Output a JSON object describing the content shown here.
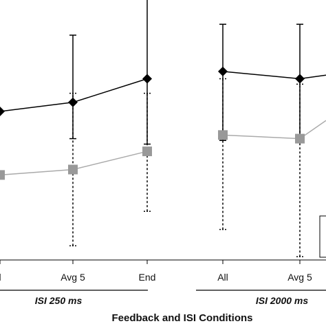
{
  "chart_data": {
    "type": "line",
    "xlabel": "Feedback and ISI Conditions",
    "categories": [
      "All",
      "Avg 5",
      "End",
      "All",
      "Avg 5"
    ],
    "category_labels_visible": [
      "l",
      "Avg 5",
      "End",
      "All",
      "Avg 5"
    ],
    "groups": [
      {
        "label": "ISI 250 ms",
        "categories": [
          0,
          1,
          2
        ]
      },
      {
        "label": "ISI 2000 ms",
        "categories": [
          3,
          4
        ]
      }
    ],
    "ylim": [
      0,
      100
    ],
    "legend": "bottom-right, partially cropped",
    "series": [
      {
        "marker": "diamond",
        "color": "#000000",
        "line_style": "solid",
        "values": [
          50,
          55,
          68,
          72,
          68
        ],
        "error_low": [
          null,
          35,
          32,
          34,
          34
        ],
        "error_high": [
          null,
          92,
          112,
          98,
          98
        ]
      },
      {
        "marker": "square",
        "color": "#999999",
        "line_style": "solid",
        "values": [
          15,
          18,
          28,
          37,
          35
        ],
        "error_low": [
          null,
          -24,
          -5,
          -15,
          -30
        ],
        "error_high": [
          null,
          60,
          60,
          68,
          65
        ]
      }
    ],
    "tail_points": [
      {
        "series": 0,
        "value": 70
      },
      {
        "series": 1,
        "value": 45
      }
    ]
  }
}
